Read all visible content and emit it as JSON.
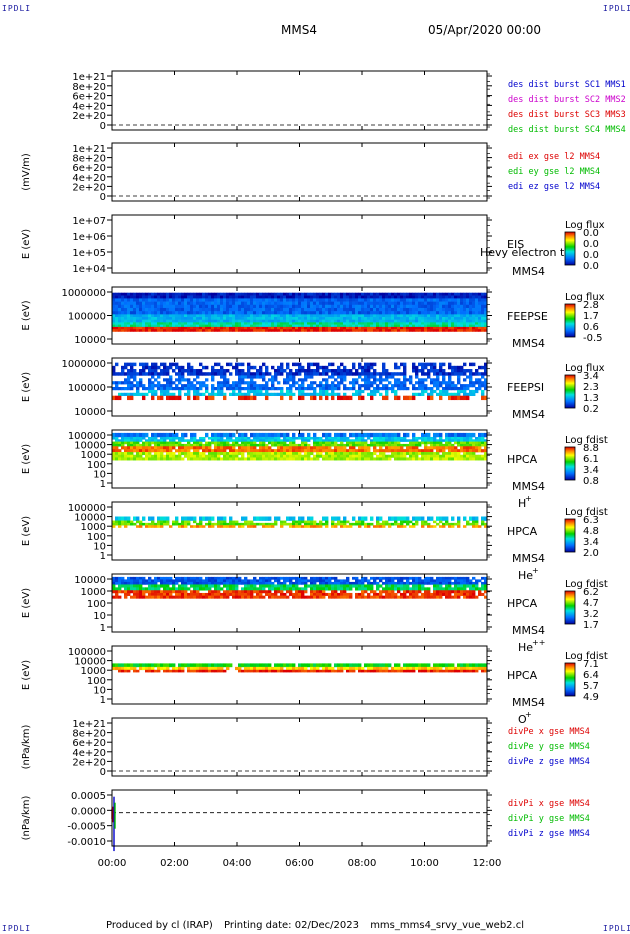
{
  "corners": {
    "top_left": "IPDLI",
    "top_right": "IPDLI",
    "bottom_left": "IPDLI",
    "bottom_right": "IPDLI"
  },
  "header": {
    "title": "MMS4",
    "date": "05/Apr/2020 00:00"
  },
  "footer": {
    "producer": "Produced by cl (IRAP)",
    "printing": "Printing date: 02/Dec/2023",
    "file": "mms_mms4_srvy_vue_web2.cl"
  },
  "colors": {
    "mms1": "#0000cc",
    "mms2": "#cc00cc",
    "mms3": "#dd0000",
    "mms4": "#00bb00",
    "x": "#dd0000",
    "y": "#00bb00",
    "z": "#0000cc"
  },
  "chart_data": {
    "type": "multi-panel-timeseries",
    "x_axis": {
      "range": [
        "00:00",
        "12:00"
      ],
      "ticks": [
        "00:00",
        "02:00",
        "04:00",
        "06:00",
        "08:00",
        "10:00",
        "12:00"
      ]
    },
    "panels": [
      {
        "id": "des-dist",
        "type": "line",
        "ylabel": "",
        "yticks": [
          "1e+21",
          "8e+20",
          "6e+20",
          "4e+20",
          "2e+20",
          "0"
        ],
        "dashed_zero": true,
        "legend": [
          {
            "text": "des dist burst SC1 MMS1",
            "color": "#0000cc"
          },
          {
            "text": "des dist burst SC2 MMS2",
            "color": "#cc00cc"
          },
          {
            "text": "des dist burst SC3 MMS3",
            "color": "#dd0000"
          },
          {
            "text": "des dist burst SC4 MMS4",
            "color": "#00bb00"
          }
        ]
      },
      {
        "id": "edi-e",
        "type": "line",
        "ylabel": "(mV/m)",
        "yticks": [
          "1e+21",
          "8e+20",
          "6e+20",
          "4e+20",
          "2e+20",
          "0"
        ],
        "dashed_zero": true,
        "legend": [
          {
            "text": "edi ex gse l2 MMS4",
            "color": "#dd0000"
          },
          {
            "text": "edi ey gse l2 MMS4",
            "color": "#00bb00"
          },
          {
            "text": "edi ez gse l2 MMS4",
            "color": "#0000cc"
          }
        ]
      },
      {
        "id": "eis",
        "type": "spectrogram",
        "ylabel": "E (eV)",
        "yticks": [
          "1e+07",
          "1e+06",
          "1e+05",
          "1e+04"
        ],
        "labels": [
          "EIS",
          "MMS4"
        ],
        "overlay": "Hevy electron to",
        "cbar_title": "Log flux",
        "cbar_ticks": [
          "0.0",
          "0.0",
          "0.0",
          "0.0"
        ],
        "empty": true
      },
      {
        "id": "feeps-e",
        "type": "spectrogram",
        "ylabel": "E (eV)",
        "yticks": [
          "1000000",
          "100000",
          "10000"
        ],
        "labels": [
          "FEEPSE",
          "MMS4"
        ],
        "cbar_title": "Log flux",
        "cbar_ticks": [
          "2.8",
          "1.7",
          "0.6",
          "-0.5"
        ]
      },
      {
        "id": "feeps-i",
        "type": "spectrogram",
        "ylabel": "E (eV)",
        "yticks": [
          "1000000",
          "100000",
          "10000"
        ],
        "labels": [
          "FEEPSI",
          "MMS4"
        ],
        "cbar_title": "Log flux",
        "cbar_ticks": [
          "3.4",
          "2.3",
          "1.3",
          "0.2"
        ]
      },
      {
        "id": "hpca-h",
        "type": "spectrogram",
        "ylabel": "E (eV)",
        "yticks": [
          "100000",
          "10000",
          "1000",
          "100",
          "10",
          "1"
        ],
        "labels": [
          "HPCA",
          "MMS4"
        ],
        "species": "H",
        "species_sup": "+",
        "cbar_title": "Log fdist",
        "cbar_ticks": [
          "8.8",
          "6.1",
          "3.4",
          "0.8"
        ]
      },
      {
        "id": "hpca-he",
        "type": "spectrogram",
        "ylabel": "E (eV)",
        "yticks": [
          "100000",
          "10000",
          "1000",
          "100",
          "10",
          "1"
        ],
        "labels": [
          "HPCA",
          "MMS4"
        ],
        "species": "He",
        "species_sup": "+",
        "cbar_title": "Log fdist",
        "cbar_ticks": [
          "6.3",
          "4.8",
          "3.4",
          "2.0"
        ]
      },
      {
        "id": "hpca-he2",
        "type": "spectrogram",
        "ylabel": "E (eV)",
        "yticks": [
          "10000",
          "1000",
          "100",
          "10",
          "1"
        ],
        "labels": [
          "HPCA",
          "MMS4"
        ],
        "species": "He",
        "species_sup": "++",
        "cbar_title": "Log fdist",
        "cbar_ticks": [
          "6.2",
          "4.7",
          "3.2",
          "1.7"
        ]
      },
      {
        "id": "hpca-o",
        "type": "spectrogram",
        "ylabel": "E (eV)",
        "yticks": [
          "100000",
          "10000",
          "1000",
          "100",
          "10",
          "1"
        ],
        "labels": [
          "HPCA",
          "MMS4"
        ],
        "species": "O",
        "species_sup": "+",
        "cbar_title": "Log fdist",
        "cbar_ticks": [
          "7.1",
          "6.4",
          "5.7",
          "4.9"
        ]
      },
      {
        "id": "divpe",
        "type": "line",
        "ylabel": "(nPa/km)",
        "yticks": [
          "1e+21",
          "8e+20",
          "6e+20",
          "4e+20",
          "2e+20",
          "0"
        ],
        "dashed_zero": true,
        "legend": [
          {
            "text": "divPe x gse MMS4",
            "color": "#dd0000"
          },
          {
            "text": "divPe y gse MMS4",
            "color": "#00bb00"
          },
          {
            "text": "divPe z gse MMS4",
            "color": "#0000cc"
          }
        ]
      },
      {
        "id": "divpi",
        "type": "line",
        "ylabel": "(nPa/km)",
        "yticks": [
          "0.0005",
          "0.0000",
          "-0.0005",
          "-0.0010"
        ],
        "dashed_zero": true,
        "legend": [
          {
            "text": "divPi x gse MMS4",
            "color": "#dd0000"
          },
          {
            "text": "divPi y gse MMS4",
            "color": "#00bb00"
          },
          {
            "text": "divPi z gse MMS4",
            "color": "#0000cc"
          }
        ]
      }
    ]
  }
}
